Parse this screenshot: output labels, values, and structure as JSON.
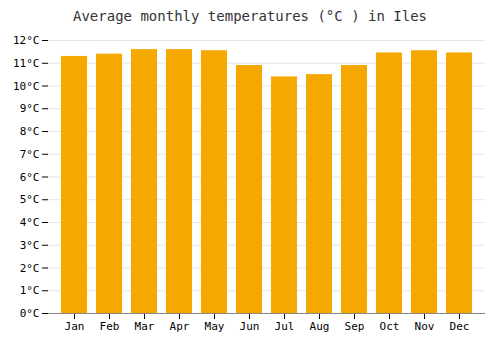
{
  "chart_data": {
    "type": "bar",
    "title": "Average monthly temperatures (°C ) in Iles",
    "categories": [
      "Jan",
      "Feb",
      "Mar",
      "Apr",
      "May",
      "Jun",
      "Jul",
      "Aug",
      "Sep",
      "Oct",
      "Nov",
      "Dec"
    ],
    "values": [
      11.3,
      11.4,
      11.6,
      11.6,
      11.55,
      10.9,
      10.4,
      10.5,
      10.9,
      11.45,
      11.55,
      11.45
    ],
    "color": "#F5A800",
    "ylim": [
      0,
      12
    ],
    "yticks": [
      {
        "value": 0,
        "label": "0°C"
      },
      {
        "value": 1,
        "label": "1°C"
      },
      {
        "value": 2,
        "label": "2°C"
      },
      {
        "value": 3,
        "label": "3°C"
      },
      {
        "value": 4,
        "label": "4°C"
      },
      {
        "value": 5,
        "label": "5°C"
      },
      {
        "value": 6,
        "label": "6°C"
      },
      {
        "value": 7,
        "label": "7°C"
      },
      {
        "value": 8,
        "label": "8°C"
      },
      {
        "value": 9,
        "label": "9°C"
      },
      {
        "value": 10,
        "label": "10°C"
      },
      {
        "value": 11,
        "label": "11°C"
      },
      {
        "value": 12,
        "label": "12°C"
      }
    ],
    "grid": true
  }
}
